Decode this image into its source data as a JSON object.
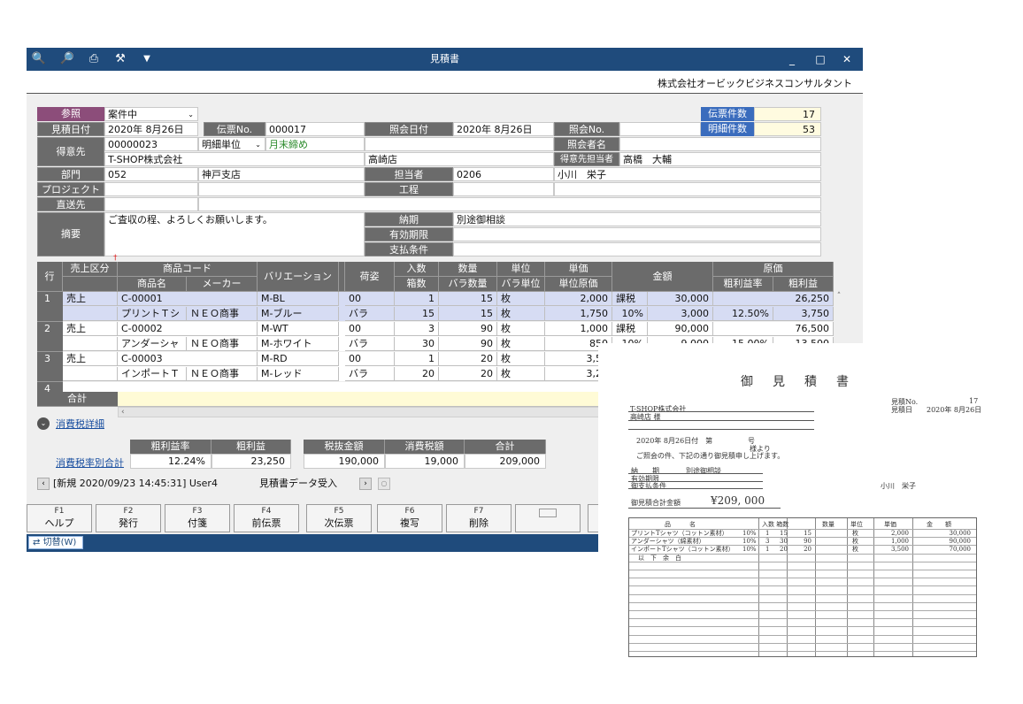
{
  "window": {
    "title": "見積書",
    "company": "株式会社オービックビジネスコンサルタント",
    "controls": [
      "_",
      "□",
      "✕"
    ]
  },
  "header": {
    "sansho_label": "参照",
    "sansho_value": "案件中",
    "mitsumori_date_label": "見積日付",
    "mitsumori_date": "2020年  8月26日",
    "denpyo_no_label": "伝票No.",
    "denpyo_no": "000017",
    "shokai_date_label": "照会日付",
    "shokai_date": "2020年  8月26日",
    "shokai_no_label": "照会No.",
    "shokai_name_label": "照会者名",
    "tokuisaki_label": "得意先",
    "tokuisaki_code": "00000023",
    "meisai_tani": "明細単位",
    "getsumatsu": "月末締め",
    "tokuisaki_name": "T-SHOP株式会社",
    "tokuisaki_sub": "高崎店",
    "tokuisaki_tanto_label": "得意先担当者",
    "tokuisaki_tanto": "高橋　大輔",
    "bumon_label": "部門",
    "bumon_code": "052",
    "bumon_name": "神戸支店",
    "tanto_label": "担当者",
    "tanto_code": "0206",
    "tanto_name": "小川　栄子",
    "project_label": "プロジェクト",
    "koji_label": "工程",
    "chokuso_label": "直送先",
    "tekiyo_label": "摘要",
    "tekiyo_value": "ご査収の程、よろしくお願いします。",
    "noki_label": "納期",
    "noki_value": "別途御相談",
    "yuko_label": "有効期限",
    "shiharai_label": "支払条件",
    "denpyo_count_label": "伝票件数",
    "denpyo_count": "17",
    "meisai_count_label": "明細件数",
    "meisai_count": "53"
  },
  "grid": {
    "headers": {
      "gyo": "行",
      "uriage": "売上区分",
      "shohin_code": "商品コード",
      "shohin_mei": "商品名",
      "maker": "メーカー",
      "variation": "バリエーション",
      "nisugata": "荷姿",
      "irisu": "入数",
      "hakosu": "箱数",
      "suryo": "数量",
      "bara_suryo": "バラ数量",
      "tani": "単位",
      "bara_tani": "バラ単位",
      "tanka": "単価",
      "tani_genka": "単位原価",
      "kingaku": "金額",
      "genka": "原価",
      "arari_ritsu": "粗利益率",
      "arari": "粗利益"
    },
    "rows": [
      {
        "no": "1",
        "kubun": "売上",
        "code": "C-00001",
        "name": "プリントＴシ",
        "maker": "ＮＥＯ商事",
        "var1": "M-BL",
        "var2": "M-ブルー",
        "nis1": "00",
        "nis2": "バラ",
        "irisu": "1",
        "hako": "15",
        "suryo": "15",
        "bara": "15",
        "tani1": "枚",
        "tani2": "枚",
        "tanka": "2,000",
        "genka_u": "1,750",
        "tax": "課税",
        "kin": "30,000",
        "rate": "10%",
        "tax_amt": "3,000",
        "genka": "26,250",
        "ritsu": "12.50%",
        "arari": "3,750"
      },
      {
        "no": "2",
        "kubun": "売上",
        "code": "C-00002",
        "name": "アンダーシャ",
        "maker": "ＮＥＯ商事",
        "var1": "M-WT",
        "var2": "M-ホワイト",
        "nis1": "00",
        "nis2": "バラ",
        "irisu": "3",
        "hako": "30",
        "suryo": "90",
        "bara": "90",
        "tani1": "枚",
        "tani2": "枚",
        "tanka": "1,000",
        "genka_u": "850",
        "tax": "課税",
        "kin": "90,000",
        "rate": "10%",
        "tax_amt": "9,000",
        "genka": "76,500",
        "ritsu": "15.00%",
        "arari": "13,500"
      },
      {
        "no": "3",
        "kubun": "売上",
        "code": "C-00003",
        "name": "インポートＴ",
        "maker": "ＮＥＯ商事",
        "var1": "M-RD",
        "var2": "M-レッド",
        "nis1": "00",
        "nis2": "バラ",
        "irisu": "1",
        "hako": "20",
        "suryo": "20",
        "bara": "20",
        "tani1": "枚",
        "tani2": "枚",
        "tanka": "3,50",
        "genka_u": "3,20",
        "tax": "",
        "kin": "",
        "rate": "",
        "tax_amt": "",
        "genka": "",
        "ritsu": "",
        "arari": ""
      }
    ],
    "row4": "4",
    "total_label": "合計"
  },
  "summary": {
    "tax_detail_link": "消費税詳細",
    "tax_rate_total_link": "消費税率別合計",
    "arari_ritsu_label": "粗利益率",
    "arari_ritsu": "12.24%",
    "arari_label": "粗利益",
    "arari": "23,250",
    "zeinuki_label": "税抜金額",
    "zeinuki": "190,000",
    "shohizei_label": "消費税額",
    "shohizei": "19,000",
    "gokei_label": "合計",
    "gokei": "209,000"
  },
  "status": {
    "record": "[新規  2020/09/23 14:45:31] User4",
    "import_label": "見積書データ受入"
  },
  "fkeys": [
    {
      "key": "F1",
      "label": "ヘルプ"
    },
    {
      "key": "F2",
      "label": "発行"
    },
    {
      "key": "F3",
      "label": "付箋"
    },
    {
      "key": "F4",
      "label": "前伝票"
    },
    {
      "key": "F5",
      "label": "次伝票"
    },
    {
      "key": "F6",
      "label": "複写"
    },
    {
      "key": "F7",
      "label": "削除"
    }
  ],
  "bottom": {
    "switch": "切替(W)"
  },
  "document": {
    "title": "御　見　積　書",
    "no_label": "見積No.",
    "no": "17",
    "date_label": "見積日",
    "date": "2020年 8月26日",
    "customer": "T-SHOP株式会社",
    "customer_sub": "高崎店 様",
    "issue_date": "2020年 8月26日付　第",
    "go": "号",
    "yori": "様より",
    "greeting": "ご照会の件、下記の通り御見積申し上げます。",
    "noki_label": "納　　期",
    "noki": "別途御相談",
    "yuko_label": "有効期限",
    "shiharai_label": "御支払条件",
    "tanto": "小川　栄子",
    "total_label": "御見積合計金額",
    "total": "¥209, 000",
    "col_headers": [
      "品　　　名",
      "入数 箱数",
      "数量",
      "単位",
      "単価",
      "金　　額"
    ],
    "items": [
      {
        "name": "プリントTシャツ（コットン素材）",
        "rate": "10%",
        "irisu": "1",
        "hako": "15",
        "suryo": "15",
        "tani": "枚",
        "tanka": "2,000",
        "kin": "30,000"
      },
      {
        "name": "アンダーシャツ（綿素材）",
        "rate": "10%",
        "irisu": "3",
        "hako": "30",
        "suryo": "90",
        "tani": "枚",
        "tanka": "1,000",
        "kin": "90,000"
      },
      {
        "name": "インポートTシャツ（コットン素材）",
        "rate": "10%",
        "irisu": "1",
        "hako": "20",
        "suryo": "20",
        "tani": "枚",
        "tanka": "3,500",
        "kin": "70,000"
      }
    ],
    "ika_yohaku": "以　下　余　白"
  }
}
